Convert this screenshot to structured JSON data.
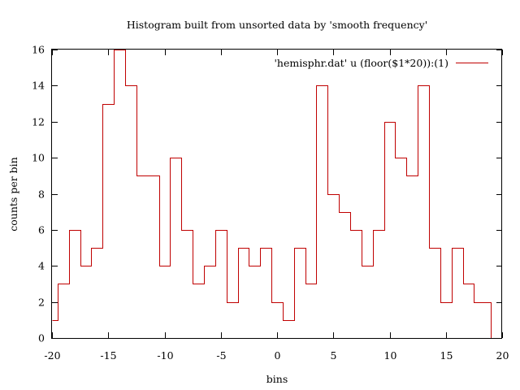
{
  "chart_data": {
    "type": "histogram-steps",
    "title": "Histogram built from unsorted data by 'smooth frequency'",
    "xlabel": "bins",
    "ylabel": "counts per bin",
    "xlim": [
      -20,
      20
    ],
    "ylim": [
      0,
      16
    ],
    "xticks": [
      -20,
      -15,
      -10,
      -5,
      0,
      5,
      10,
      15,
      20
    ],
    "yticks": [
      0,
      2,
      4,
      6,
      8,
      10,
      12,
      14,
      16
    ],
    "grid": false,
    "legend_position": "top-right",
    "series": [
      {
        "name": "'hemisphr.dat' u (floor($1*20)):(1)",
        "color": "#c00000",
        "x": [
          -20,
          -19,
          -18,
          -17,
          -16,
          -15,
          -14,
          -13,
          -12,
          -11,
          -10,
          -9,
          -8,
          -7,
          -6,
          -5,
          -4,
          -3,
          -2,
          -1,
          0,
          1,
          2,
          3,
          4,
          5,
          6,
          7,
          8,
          9,
          10,
          11,
          12,
          13,
          14,
          15,
          16,
          17,
          18,
          19
        ],
        "values": [
          1,
          3,
          6,
          4,
          5,
          13,
          16,
          14,
          9,
          9,
          4,
          10,
          6,
          3,
          4,
          6,
          2,
          5,
          4,
          5,
          2,
          1,
          5,
          3,
          14,
          8,
          7,
          6,
          4,
          6,
          12,
          10,
          9,
          14,
          5,
          2,
          5,
          3,
          2,
          2
        ]
      }
    ]
  }
}
